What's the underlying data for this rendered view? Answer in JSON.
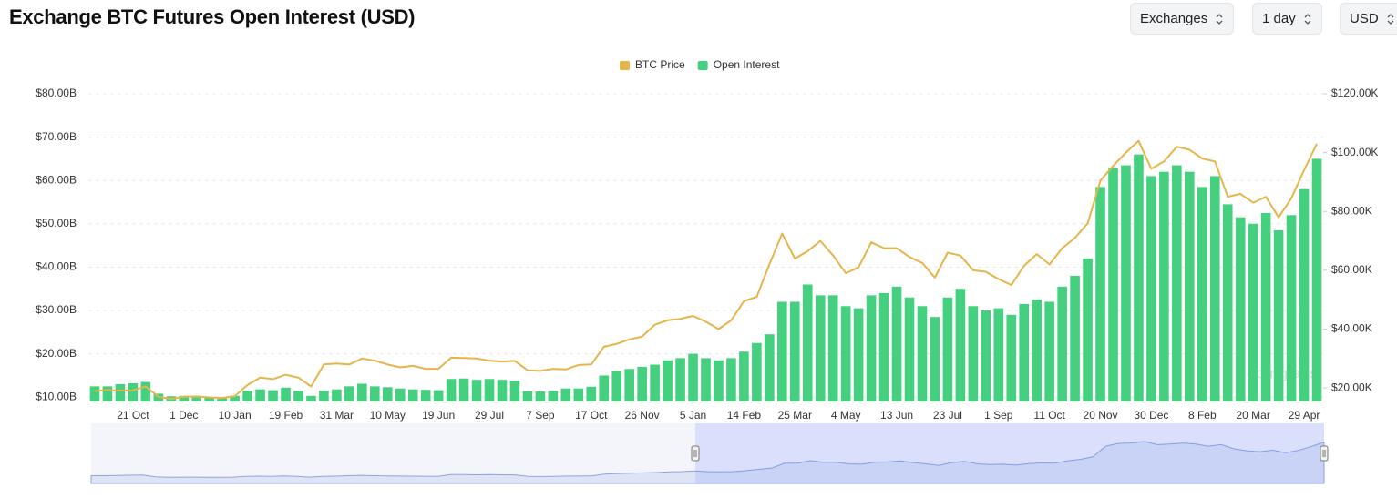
{
  "title": "Exchange BTC Futures Open Interest (USD)",
  "controls": [
    "Exchanges",
    "1 day",
    "USD"
  ],
  "chart_data": {
    "type": "bar",
    "watermark": "coinglass",
    "categories": [
      null,
      null,
      null,
      "21 Oct",
      null,
      null,
      null,
      "1 Dec",
      null,
      null,
      null,
      "10 Jan",
      null,
      null,
      null,
      "19 Feb",
      null,
      null,
      null,
      "31 Mar",
      null,
      null,
      null,
      "10 May",
      null,
      null,
      null,
      "19 Jun",
      null,
      null,
      null,
      "29 Jul",
      null,
      null,
      null,
      "7 Sep",
      null,
      null,
      null,
      "17 Oct",
      null,
      null,
      null,
      "26 Nov",
      null,
      null,
      null,
      "5 Jan",
      null,
      null,
      null,
      "14 Feb",
      null,
      null,
      null,
      "25 Mar",
      null,
      null,
      null,
      "4 May",
      null,
      null,
      null,
      "13 Jun",
      null,
      null,
      null,
      "23 Jul",
      null,
      null,
      null,
      "1 Sep",
      null,
      null,
      null,
      "11 Oct",
      null,
      null,
      null,
      "20 Nov",
      null,
      null,
      null,
      "30 Dec",
      null,
      null,
      null,
      "8 Feb",
      null,
      null,
      null,
      "20 Mar",
      null,
      null,
      null,
      "29 Apr",
      null
    ],
    "series": [
      {
        "name": "BTC Price",
        "type": "line",
        "axis": "y2",
        "color": "#e6b54a",
        "values": [
          19,
          19.3,
          19.1,
          19.2,
          20.5,
          17,
          16.3,
          17,
          17.1,
          16.8,
          16.6,
          17.2,
          21,
          23.5,
          23,
          24.5,
          23.5,
          20.5,
          28,
          28.3,
          28,
          30,
          29.3,
          28,
          27,
          27.5,
          26.5,
          26.5,
          30.3,
          30.2,
          30,
          29.3,
          29,
          29.2,
          26,
          25.8,
          26.5,
          26.3,
          27.8,
          28,
          34,
          35,
          36.5,
          37.5,
          41.5,
          43,
          43.5,
          44.5,
          42.5,
          40,
          43,
          49.5,
          51,
          62,
          72.5,
          64,
          66.5,
          70,
          65,
          59,
          61,
          69.5,
          67.5,
          67.5,
          64.5,
          62.5,
          57.5,
          66,
          65,
          60,
          59.5,
          57,
          55,
          61.5,
          65.5,
          62,
          67.5,
          71,
          76,
          90.5,
          95.5,
          100,
          104,
          94.5,
          97,
          102,
          101,
          98,
          97,
          85,
          86,
          83,
          85,
          78,
          84.5,
          94,
          103
        ]
      },
      {
        "name": "Open Interest",
        "type": "bar",
        "color": "#45d07f",
        "values": [
          12.5,
          12.5,
          13,
          13.2,
          13.5,
          10.8,
          10.2,
          10.3,
          10.3,
          10,
          10,
          10.3,
          11.5,
          11.8,
          11.6,
          12.2,
          11.5,
          10.3,
          11.5,
          11.8,
          12.5,
          13.1,
          12.5,
          12.3,
          12,
          11.8,
          11.7,
          11.6,
          14.2,
          14.3,
          14,
          14.2,
          14,
          13.8,
          11.4,
          11.3,
          11.5,
          12,
          12,
          12.4,
          15,
          16,
          16.5,
          17,
          17.5,
          18.5,
          19,
          20,
          19,
          18.5,
          19,
          20.5,
          22.5,
          24.5,
          32,
          32,
          36,
          33.5,
          33.5,
          31,
          30.5,
          33.5,
          34,
          35.5,
          33,
          31,
          28.5,
          33,
          35,
          31,
          30,
          30.5,
          29,
          31.5,
          32.5,
          32,
          35.5,
          38,
          42,
          58.5,
          63,
          63.5,
          66,
          61,
          62,
          63.5,
          62,
          58.5,
          61,
          54.5,
          51.5,
          50,
          52.5,
          48.5,
          52,
          58,
          65
        ]
      }
    ],
    "ylim": [
      9,
      80
    ],
    "yticks": [
      {
        "value": 10,
        "label": "$10.00B"
      },
      {
        "value": 20,
        "label": "$20.00B"
      },
      {
        "value": 30,
        "label": "$30.00B"
      },
      {
        "value": 40,
        "label": "$40.00B"
      },
      {
        "value": 50,
        "label": "$50.00B"
      },
      {
        "value": 60,
        "label": "$60.00B"
      },
      {
        "value": 70,
        "label": "$70.00B"
      },
      {
        "value": 80,
        "label": "$80.00B"
      }
    ],
    "y2lim": [
      15.4,
      120
    ],
    "y2ticks": [
      {
        "value": 20,
        "label": "$20.00K"
      },
      {
        "value": 40,
        "label": "$40.00K"
      },
      {
        "value": 60,
        "label": "$60.00K"
      },
      {
        "value": 80,
        "label": "$80.00K"
      },
      {
        "value": 100,
        "label": "$100.00K"
      },
      {
        "value": 120,
        "label": "$120.00K"
      }
    ],
    "grid": true,
    "legend": "top"
  }
}
